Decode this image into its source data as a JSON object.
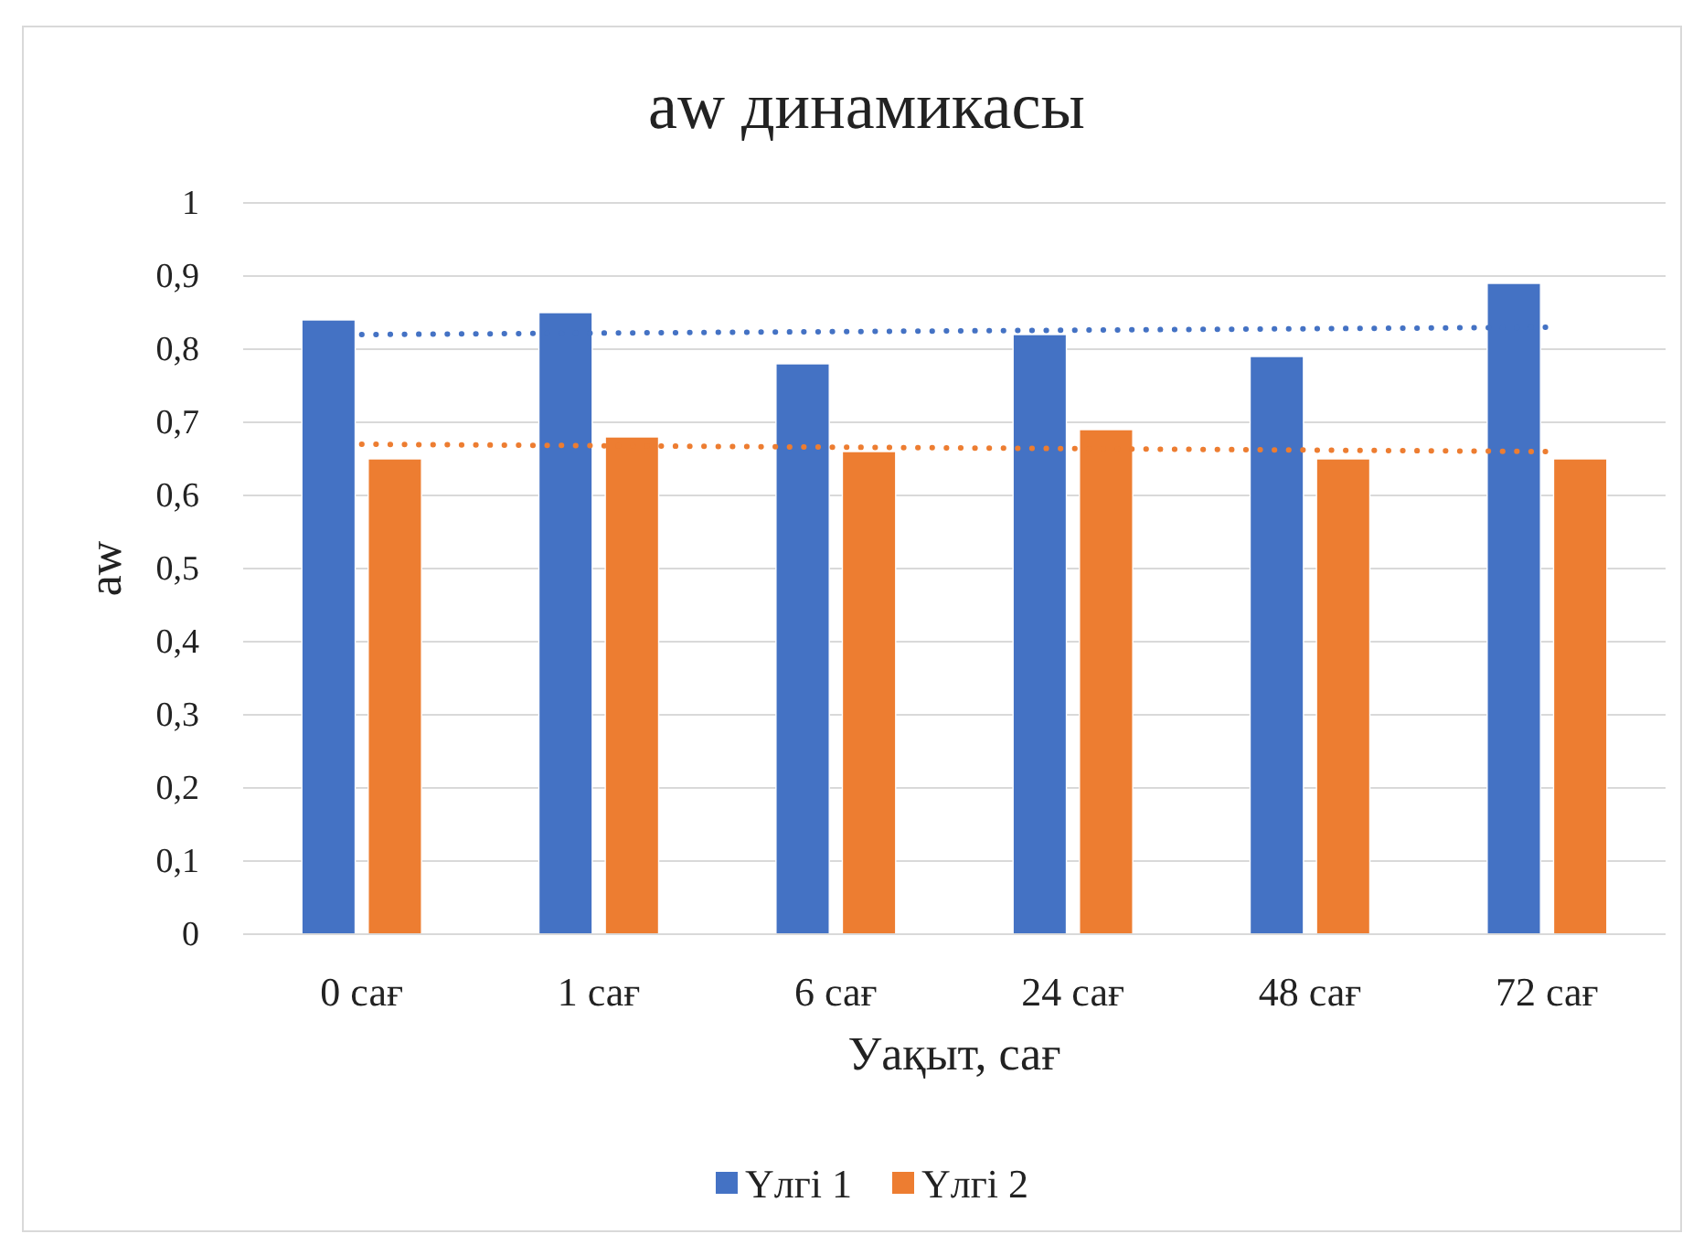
{
  "chart_data": {
    "type": "bar",
    "title": "aw динамикасы",
    "xlabel": "Уақыт, сағ",
    "ylabel": "aw",
    "categories": [
      "0 сағ",
      "1 сағ",
      "6 сағ",
      "24 сағ",
      "48 сағ",
      "72 сағ"
    ],
    "series": [
      {
        "name": "Үлгі 1",
        "color": "#4472c4",
        "values": [
          0.84,
          0.85,
          0.78,
          0.82,
          0.79,
          0.89
        ]
      },
      {
        "name": "Үлгі 2",
        "color": "#ed7d31",
        "values": [
          0.65,
          0.68,
          0.66,
          0.69,
          0.65,
          0.65
        ]
      },
      {
        "type": "line",
        "color": "#4472c4",
        "line_style": "dotted",
        "x": [
          "0 сағ",
          "72 сағ"
        ],
        "values": [
          0.82,
          0.83
        ]
      },
      {
        "type": "line",
        "color": "#ed7d31",
        "line_style": "dotted",
        "x": [
          "0 сағ",
          "72 сағ"
        ],
        "values": [
          0.67,
          0.66
        ]
      }
    ],
    "ylim": [
      0,
      1
    ],
    "yticks": [
      0,
      {
        "value": 0.1,
        "label": "0,1"
      },
      {
        "value": 0.2,
        "label": "0,2"
      },
      {
        "value": 0.3,
        "label": "0,3"
      },
      {
        "value": 0.4,
        "label": "0,4"
      },
      {
        "value": 0.5,
        "label": "0,5"
      },
      {
        "value": 0.6,
        "label": "0,6"
      },
      {
        "value": 0.7,
        "label": "0,7"
      },
      {
        "value": 0.8,
        "label": "0,8"
      },
      {
        "value": 0.9,
        "label": "0,9"
      },
      1
    ],
    "grid": "y",
    "legend": "bottom"
  }
}
